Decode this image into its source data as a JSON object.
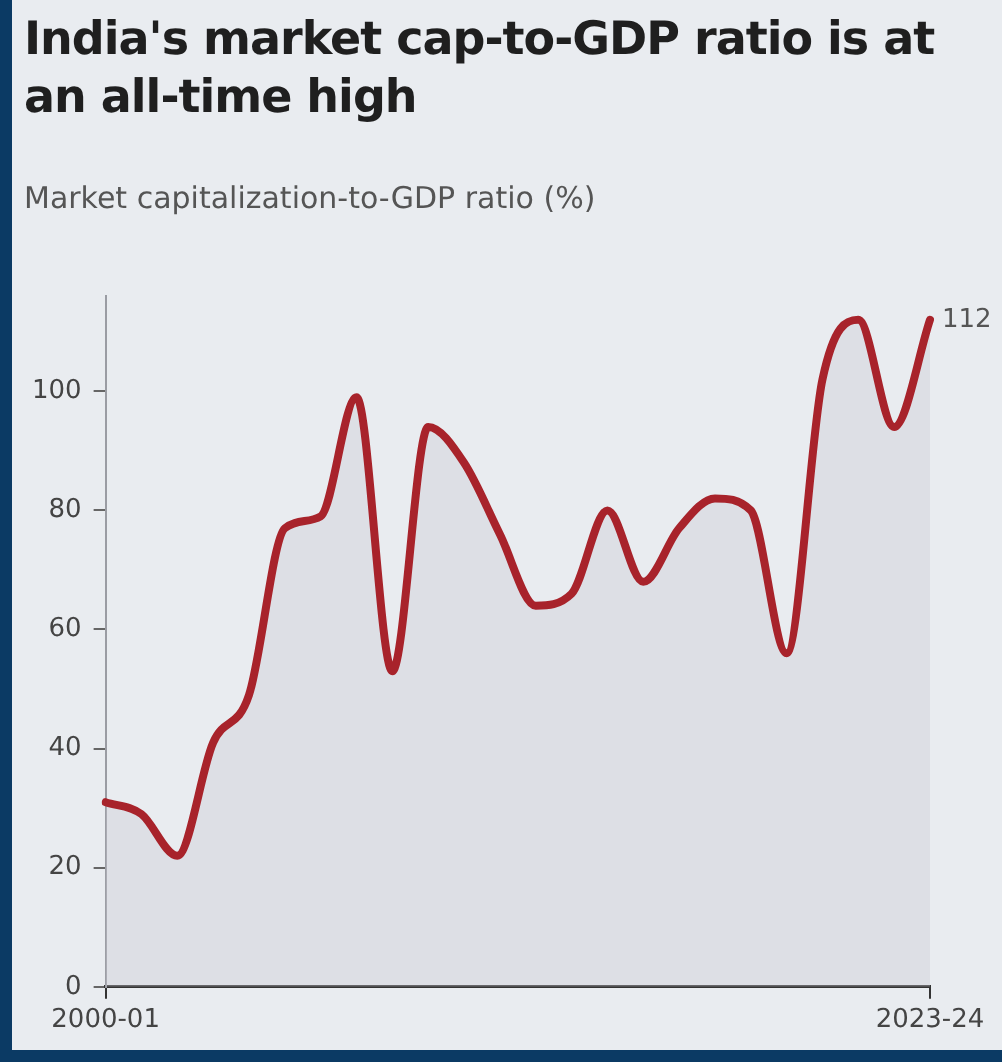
{
  "chart_data": {
    "type": "area",
    "title": "India's market cap-to-GDP ratio is at an all-time high",
    "subtitle": "Market capitalization-to-GDP ratio (%)",
    "categories": [
      "2000-01",
      null,
      null,
      null,
      null,
      null,
      null,
      null,
      null,
      null,
      null,
      null,
      null,
      null,
      null,
      null,
      null,
      null,
      null,
      null,
      null,
      null,
      null,
      "2023-24"
    ],
    "values": [
      31,
      29,
      22,
      41,
      49,
      77,
      79,
      99,
      53,
      94,
      88,
      76,
      64,
      66,
      80,
      68,
      77,
      82,
      80,
      56,
      102,
      112,
      94,
      112
    ],
    "value_labels": [
      null,
      null,
      null,
      null,
      null,
      null,
      null,
      null,
      null,
      null,
      null,
      null,
      null,
      null,
      null,
      null,
      null,
      null,
      null,
      null,
      null,
      null,
      null,
      "112"
    ],
    "color": "#a8232b",
    "ylim": [
      0,
      116
    ],
    "yticks": [
      0,
      20,
      40,
      60,
      80,
      100
    ],
    "grid": false,
    "legend": false,
    "marker": "none",
    "line_style": "solid"
  }
}
